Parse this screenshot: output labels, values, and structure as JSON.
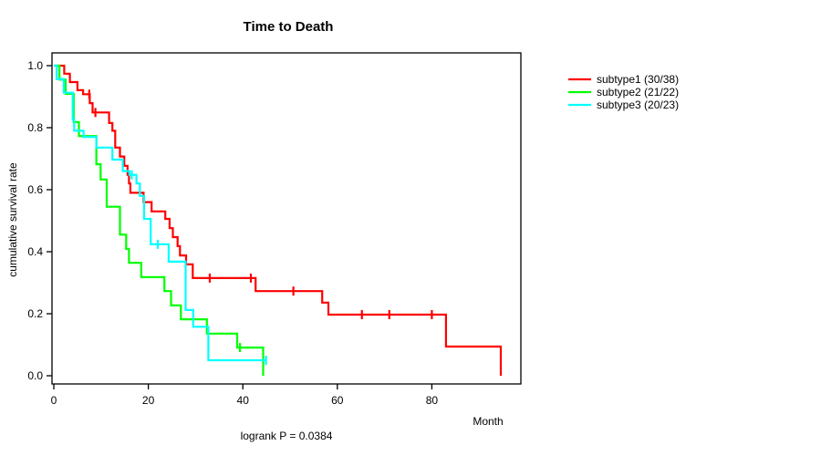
{
  "title": "Time to Death",
  "annotation": "logrank P = 0.0384",
  "x_axis": {
    "label": "Month",
    "tick_labels": [
      "0",
      "20",
      "40",
      "60",
      "80"
    ],
    "tick_values": [
      0,
      20,
      40,
      60,
      80
    ]
  },
  "y_axis": {
    "label": "cumulative survival rate",
    "tick_labels": [
      "0.0",
      "0.2",
      "0.4",
      "0.6",
      "0.8",
      "1.0"
    ],
    "tick_values": [
      0,
      0.2,
      0.4,
      0.6,
      0.8,
      1.0
    ]
  },
  "colors": {
    "subtype1": "#ff0000",
    "subtype2": "#00ff00",
    "subtype3": "#00ffff",
    "axis": "#000000"
  },
  "chart_data": {
    "type": "line",
    "subtype": "kaplan-meier-step-function",
    "title": "Time to Death",
    "xlabel": "Month",
    "ylabel": "cumulative survival rate",
    "xlim": [
      0,
      99
    ],
    "ylim": [
      0,
      1.0
    ],
    "grid": false,
    "legend_position": "right-outside",
    "annotation": "logrank P = 0.0384",
    "series": [
      {
        "name": "subtype1 (30/38)",
        "color": "#ff0000",
        "n": 38,
        "events": 30,
        "steps": [
          [
            0,
            1.0
          ],
          [
            2.2,
            0.974
          ],
          [
            3.4,
            0.947
          ],
          [
            5.0,
            0.921
          ],
          [
            6.2,
            0.908
          ],
          [
            7.6,
            0.879
          ],
          [
            8.2,
            0.849
          ],
          [
            11.7,
            0.815
          ],
          [
            12.4,
            0.79
          ],
          [
            13.0,
            0.736
          ],
          [
            14.0,
            0.707
          ],
          [
            14.9,
            0.677
          ],
          [
            15.6,
            0.648
          ],
          [
            15.9,
            0.62
          ],
          [
            16.2,
            0.59
          ],
          [
            19.0,
            0.56
          ],
          [
            20.7,
            0.53
          ],
          [
            23.6,
            0.506
          ],
          [
            24.5,
            0.476
          ],
          [
            25.2,
            0.447
          ],
          [
            26.2,
            0.418
          ],
          [
            26.7,
            0.388
          ],
          [
            28.0,
            0.359
          ],
          [
            29.4,
            0.315
          ],
          [
            42.7,
            0.273
          ],
          [
            56.8,
            0.236
          ],
          [
            58.1,
            0.197
          ],
          [
            83.0,
            0.094
          ],
          [
            94.6,
            0.0
          ]
        ],
        "censored": [
          [
            7.5,
            0.908
          ],
          [
            8.8,
            0.849
          ],
          [
            33.0,
            0.315
          ],
          [
            41.7,
            0.315
          ],
          [
            50.7,
            0.273
          ],
          [
            65.2,
            0.197
          ],
          [
            71.0,
            0.197
          ],
          [
            80.0,
            0.197
          ]
        ]
      },
      {
        "name": "subtype2 (21/22)",
        "color": "#00ff00",
        "n": 22,
        "events": 21,
        "steps": [
          [
            0,
            1.0
          ],
          [
            1.2,
            0.955
          ],
          [
            2.5,
            0.909
          ],
          [
            4.2,
            0.818
          ],
          [
            5.3,
            0.773
          ],
          [
            9.0,
            0.682
          ],
          [
            9.9,
            0.633
          ],
          [
            11.2,
            0.545
          ],
          [
            14.0,
            0.455
          ],
          [
            15.3,
            0.409
          ],
          [
            15.9,
            0.364
          ],
          [
            18.5,
            0.318
          ],
          [
            23.4,
            0.273
          ],
          [
            24.8,
            0.227
          ],
          [
            26.9,
            0.182
          ],
          [
            32.4,
            0.136
          ],
          [
            38.8,
            0.091
          ],
          [
            44.3,
            0.0
          ]
        ],
        "censored": [
          [
            39.4,
            0.091
          ]
        ]
      },
      {
        "name": "subtype3 (20/23)",
        "color": "#00ffff",
        "n": 23,
        "events": 20,
        "steps": [
          [
            0,
            1.0
          ],
          [
            0.6,
            0.957
          ],
          [
            2.1,
            0.913
          ],
          [
            4.0,
            0.826
          ],
          [
            4.3,
            0.79
          ],
          [
            6.3,
            0.77
          ],
          [
            9.0,
            0.736
          ],
          [
            12.4,
            0.697
          ],
          [
            14.6,
            0.66
          ],
          [
            16.0,
            0.648
          ],
          [
            17.5,
            0.62
          ],
          [
            18.2,
            0.58
          ],
          [
            19.1,
            0.506
          ],
          [
            20.5,
            0.424
          ],
          [
            24.3,
            0.368
          ],
          [
            27.9,
            0.212
          ],
          [
            29.5,
            0.158
          ],
          [
            32.7,
            0.05
          ],
          [
            45.0,
            0.05
          ]
        ],
        "censored": [
          [
            16.5,
            0.648
          ],
          [
            22.0,
            0.424
          ],
          [
            44.9,
            0.05
          ]
        ]
      }
    ]
  }
}
